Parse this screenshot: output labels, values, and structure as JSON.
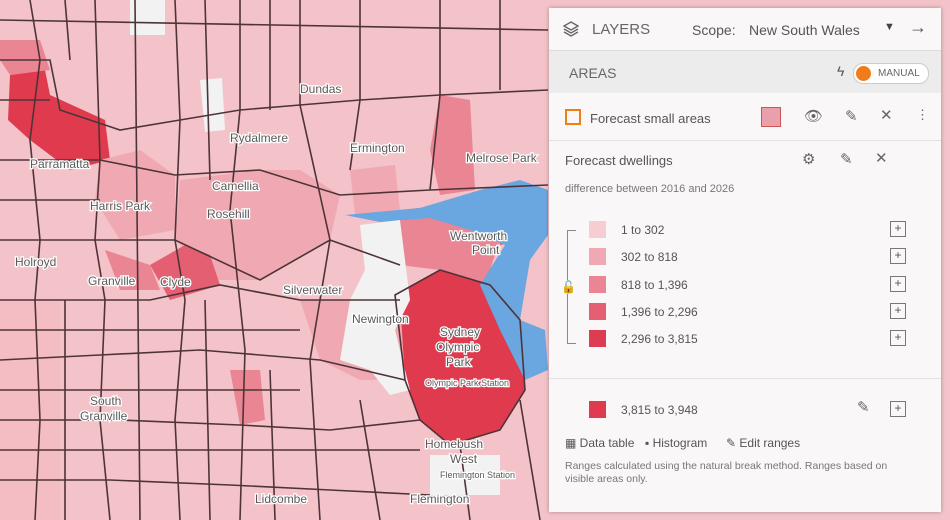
{
  "map": {
    "labels": [
      "Parramatta",
      "Rydalmere",
      "Camellia",
      "Rosehill",
      "Harris Park",
      "Holroyd",
      "Granville",
      "Clyde",
      "Silverwater",
      "Newington",
      "Sydney",
      "Olympic",
      "Park",
      "Wentworth",
      "Point",
      "Ermington",
      "Dundas",
      "Melrose Park",
      "Homebush",
      "West",
      "Flemington",
      "South",
      "Granville",
      "Olympic Park Station",
      "Lidcombe",
      "Flemington Station"
    ]
  },
  "panel": {
    "header": {
      "title": "LAYERS",
      "scope_label": "Scope:",
      "scope_value": "New South Wales"
    },
    "areas": {
      "title": "AREAS",
      "mode": "MANUAL"
    },
    "layer": {
      "name": "Forecast small areas"
    },
    "indicator": {
      "title": "Forecast dwellings",
      "subtitle": "difference between 2016 and 2026",
      "ranges": [
        {
          "label": "1 to 302",
          "color": "#f6cdd3"
        },
        {
          "label": "302 to 818",
          "color": "#f0a9b3"
        },
        {
          "label": "818 to 1,396",
          "color": "#ea8593"
        },
        {
          "label": "1,396 to 2,296",
          "color": "#e45f72"
        },
        {
          "label": "2,296 to 3,815",
          "color": "#de3c52"
        }
      ],
      "extra_range": {
        "label": "3,815 to 3,948",
        "color": "#e03a4e"
      }
    },
    "links": [
      "Data table",
      "Histogram",
      "Edit ranges"
    ],
    "note": "Ranges calculated using the natural break method. Ranges based on visible areas only."
  }
}
